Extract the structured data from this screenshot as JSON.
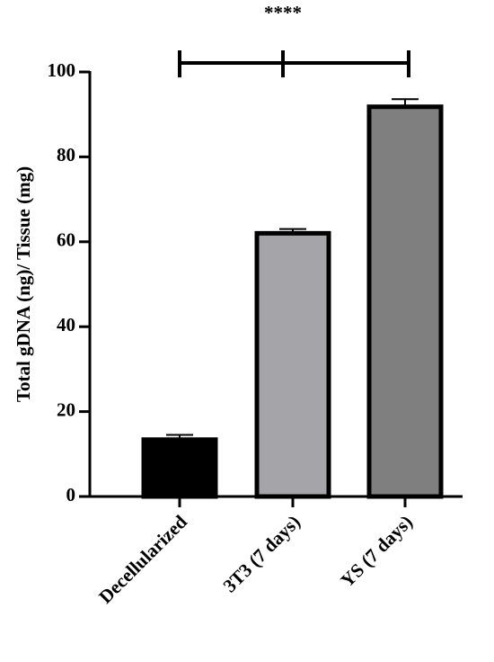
{
  "chart_data": {
    "type": "bar",
    "categories": [
      "Decellularized",
      "3T3 (7 days)",
      "YS (7 days)"
    ],
    "values": [
      13.4,
      62,
      91.8
    ],
    "errors": [
      1.1,
      1,
      1.8
    ],
    "colors": [
      "#000000",
      "#a5a5a9",
      "#7f7f7f"
    ],
    "ylabel": "Total gDNA (ng)/ Tissue (mg)",
    "ylim": [
      0,
      100
    ],
    "yticks": [
      0,
      20,
      40,
      60,
      80,
      100
    ],
    "annotation": "****"
  }
}
